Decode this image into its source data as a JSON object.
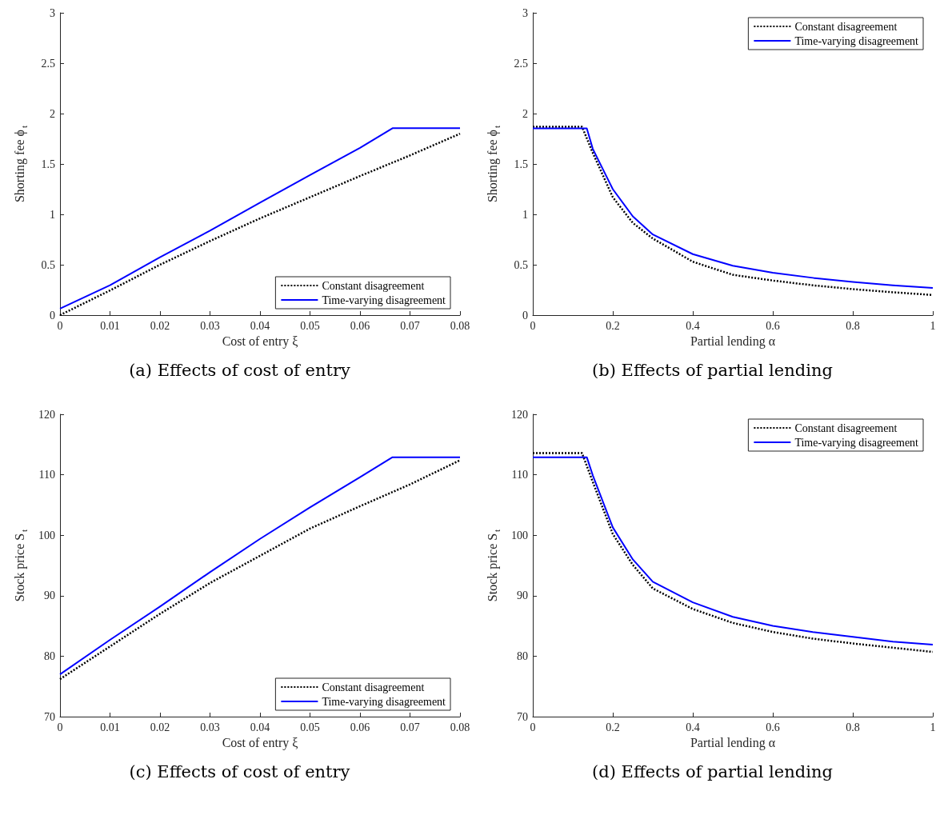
{
  "chart_data": [
    {
      "type": "line",
      "title": "(a) Effects of cost of entry",
      "xlabel": "Cost of entry ξ",
      "ylabel": "Shorting fee ϕ$_{t}$",
      "xlim": [
        0,
        0.08
      ],
      "xticks": [
        0,
        0.01,
        0.02,
        0.03,
        0.04,
        0.05,
        0.06,
        0.07,
        0.08
      ],
      "ylim": [
        0,
        3
      ],
      "yticks": [
        0,
        0.5,
        1,
        1.5,
        2,
        2.5,
        3
      ],
      "legend": "bottom right",
      "series": [
        {
          "name": "Constant disagreement",
          "color": "#000000",
          "line_style": "dotted",
          "x": [
            0,
            0.01,
            0.02,
            0.03,
            0.04,
            0.05,
            0.06,
            0.07,
            0.08
          ],
          "values": [
            0,
            0.245,
            0.5,
            0.735,
            0.96,
            1.17,
            1.38,
            1.585,
            1.8
          ]
        },
        {
          "name": "Time-varying disagreement",
          "color": "#0000ff",
          "line_style": "solid",
          "x": [
            0,
            0.01,
            0.02,
            0.03,
            0.04,
            0.05,
            0.06,
            0.0665,
            0.08
          ],
          "values": [
            0.065,
            0.296,
            0.575,
            0.838,
            1.116,
            1.39,
            1.66,
            1.855,
            1.855
          ]
        }
      ]
    },
    {
      "type": "line",
      "title": "(b) Effects of partial lending",
      "xlabel": "Partial lending α",
      "ylabel": "Shorting fee ϕ$_{t}$",
      "xlim": [
        0,
        1
      ],
      "xticks": [
        0,
        0.2,
        0.4,
        0.6,
        0.8,
        1
      ],
      "ylim": [
        0,
        3
      ],
      "yticks": [
        0,
        0.5,
        1,
        1.5,
        2,
        2.5,
        3
      ],
      "legend": "top right",
      "series": [
        {
          "name": "Constant disagreement",
          "color": "#000000",
          "line_style": "dotted",
          "x": [
            0,
            0.123,
            0.15,
            0.2,
            0.25,
            0.3,
            0.4,
            0.5,
            0.6,
            0.7,
            0.8,
            0.9,
            1
          ],
          "values": [
            1.87,
            1.87,
            1.61,
            1.17,
            0.915,
            0.76,
            0.53,
            0.4,
            0.343,
            0.296,
            0.258,
            0.227,
            0.2
          ]
        },
        {
          "name": "Time-varying disagreement",
          "color": "#0000ff",
          "line_style": "solid",
          "x": [
            0,
            0.135,
            0.15,
            0.2,
            0.25,
            0.3,
            0.4,
            0.5,
            0.6,
            0.7,
            0.8,
            0.9,
            1
          ],
          "values": [
            1.853,
            1.853,
            1.65,
            1.25,
            0.98,
            0.8,
            0.605,
            0.49,
            0.42,
            0.37,
            0.33,
            0.296,
            0.27
          ]
        }
      ]
    },
    {
      "type": "line",
      "title": "(c) Effects of cost of entry",
      "xlabel": "Cost of entry ξ",
      "ylabel": "Stock price S$_{t}$",
      "xlim": [
        0,
        0.08
      ],
      "xticks": [
        0,
        0.01,
        0.02,
        0.03,
        0.04,
        0.05,
        0.06,
        0.07,
        0.08
      ],
      "ylim": [
        70,
        120
      ],
      "yticks": [
        70,
        80,
        90,
        100,
        110,
        120
      ],
      "legend": "bottom right",
      "series": [
        {
          "name": "Constant disagreement",
          "color": "#000000",
          "line_style": "dotted",
          "x": [
            0,
            0.01,
            0.02,
            0.03,
            0.04,
            0.05,
            0.06,
            0.07,
            0.08
          ],
          "values": [
            76.2,
            81.6,
            87,
            92.1,
            96.6,
            101.1,
            104.8,
            108.4,
            112.4
          ]
        },
        {
          "name": "Time-varying disagreement",
          "color": "#0000ff",
          "line_style": "solid",
          "x": [
            0,
            0.01,
            0.02,
            0.03,
            0.04,
            0.05,
            0.06,
            0.0665,
            0.08
          ],
          "values": [
            77,
            82.7,
            88.2,
            93.9,
            99.4,
            104.6,
            109.6,
            112.9,
            112.9
          ]
        }
      ]
    },
    {
      "type": "line",
      "title": "(d) Effects of partial lending",
      "xlabel": "Partial lending α",
      "ylabel": "Stock price S$_{t}$",
      "xlim": [
        0,
        1
      ],
      "xticks": [
        0,
        0.2,
        0.4,
        0.6,
        0.8,
        1
      ],
      "ylim": [
        70,
        120
      ],
      "yticks": [
        70,
        80,
        90,
        100,
        110,
        120
      ],
      "legend": "top right",
      "series": [
        {
          "name": "Constant disagreement",
          "color": "#000000",
          "line_style": "dotted",
          "x": [
            0,
            0.123,
            0.15,
            0.2,
            0.25,
            0.3,
            0.4,
            0.5,
            0.6,
            0.7,
            0.8,
            0.9,
            1
          ],
          "values": [
            113.6,
            113.6,
            108.8,
            100.2,
            95.1,
            91.2,
            87.8,
            85.5,
            84,
            82.9,
            82.1,
            81.4,
            80.7
          ]
        },
        {
          "name": "Time-varying disagreement",
          "color": "#0000ff",
          "line_style": "solid",
          "x": [
            0,
            0.135,
            0.15,
            0.2,
            0.25,
            0.3,
            0.4,
            0.5,
            0.6,
            0.7,
            0.8,
            0.9,
            1
          ],
          "values": [
            112.9,
            112.9,
            109.9,
            101.3,
            96,
            92.3,
            88.9,
            86.5,
            85,
            84,
            83.2,
            82.4,
            81.9
          ]
        }
      ]
    }
  ]
}
